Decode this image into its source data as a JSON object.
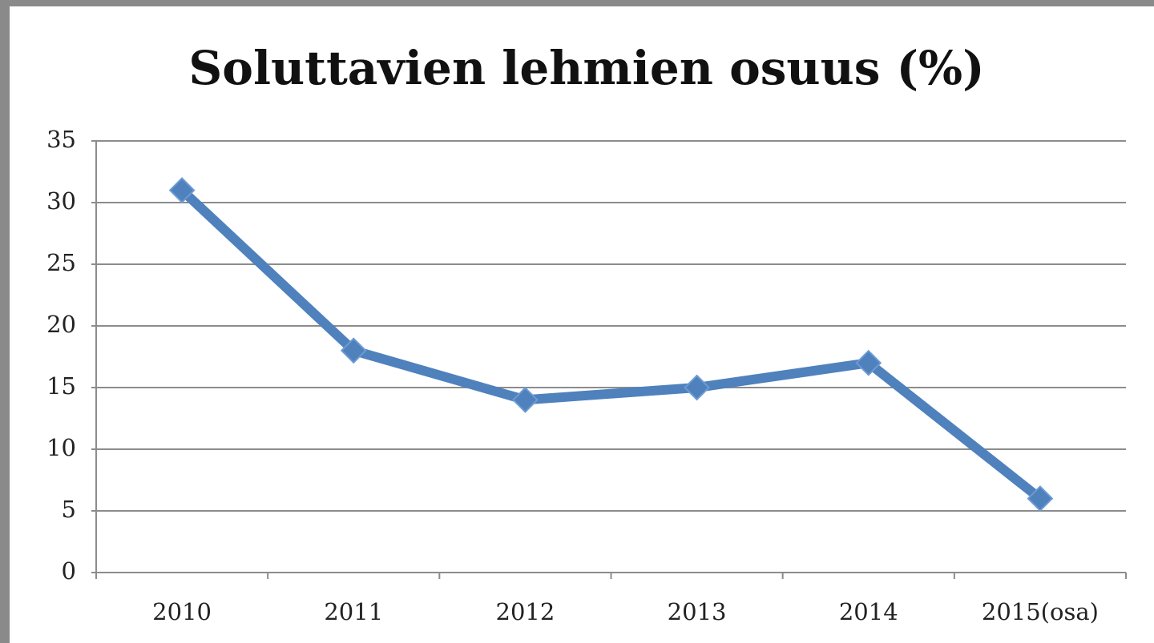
{
  "chart_data": {
    "type": "line",
    "title": "Soluttavien lehmien osuus (%)",
    "categories": [
      "2010",
      "2011",
      "2012",
      "2013",
      "2014",
      "2015(osa)"
    ],
    "series": [
      {
        "name": "Soluttavien lehmien osuus",
        "color": "#4f81bd",
        "values": [
          31,
          18,
          14,
          15,
          17,
          6
        ]
      }
    ],
    "ylim": [
      0,
      35
    ],
    "yticks": [
      0,
      5,
      10,
      15,
      20,
      25,
      30,
      35
    ],
    "grid": true
  }
}
